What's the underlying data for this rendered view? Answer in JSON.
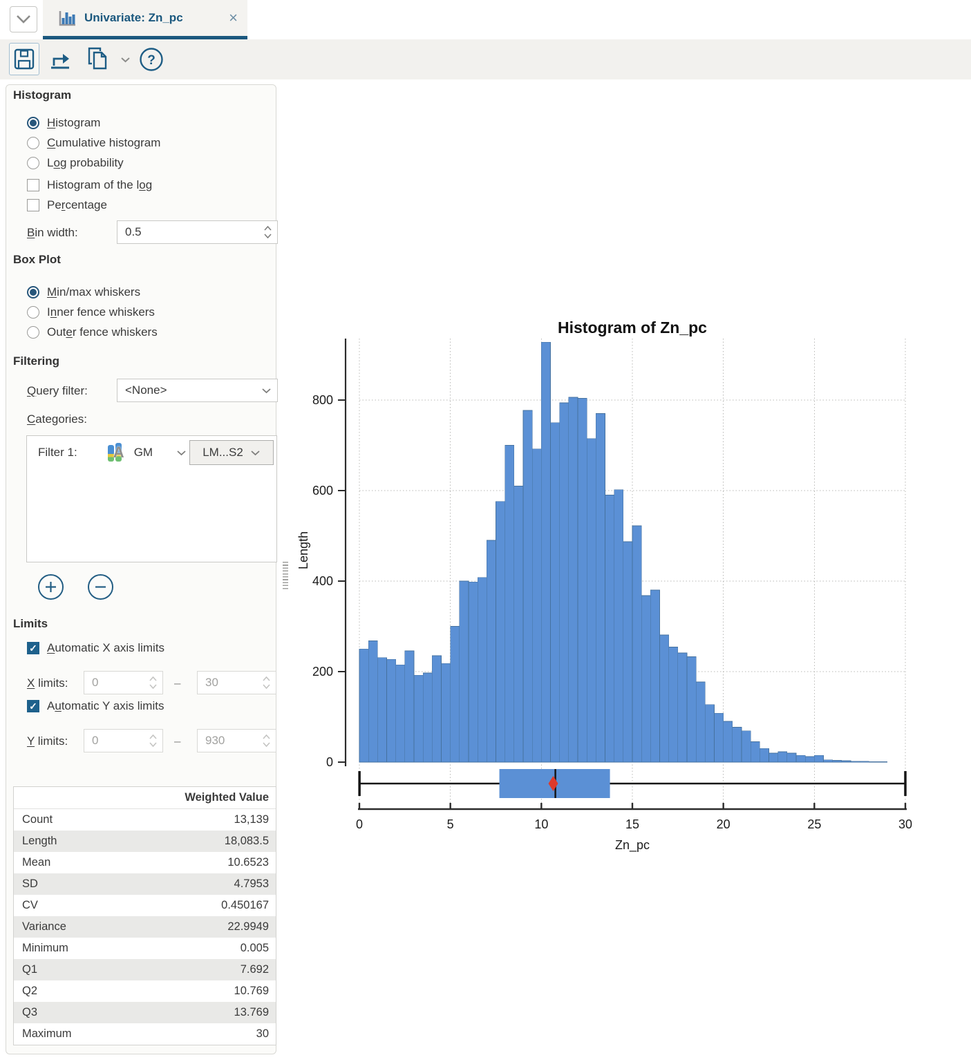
{
  "tab_bar": {
    "window_menu_icon": "chevron-down-icon",
    "tab": {
      "icon": "mini-histogram-icon",
      "title": "Univariate: Zn_pc",
      "close_glyph": "×"
    }
  },
  "toolbar": {
    "buttons": [
      {
        "name": "save",
        "icon": "floppy-disk-icon"
      },
      {
        "name": "export",
        "icon": "export-arrow-icon"
      },
      {
        "name": "copy",
        "icon": "copy-pages-icon"
      },
      {
        "name": "copy-menu",
        "icon": "chevron-down-icon"
      },
      {
        "name": "help",
        "icon": "question-mark-circle-icon",
        "glyph": "?"
      }
    ]
  },
  "sidebar": {
    "histogram_section": {
      "title": "Histogram",
      "radios": [
        {
          "pre": "",
          "key": "H",
          "post": "istogram",
          "selected": true
        },
        {
          "pre": "",
          "key": "C",
          "post": "umulative histogram",
          "selected": false
        },
        {
          "pre": "L",
          "key": "o",
          "post": "g probability",
          "selected": false
        }
      ],
      "checkboxes": [
        {
          "pre": "Histogram of the l",
          "key": "o",
          "post": "g",
          "checked": false
        },
        {
          "pre": "Pe",
          "key": "r",
          "post": "centage",
          "checked": false
        }
      ],
      "bin_width": {
        "label": {
          "pre": "",
          "key": "B",
          "post": "in width:"
        },
        "value": "0.5"
      }
    },
    "box_plot_section": {
      "title": "Box Plot",
      "radios": [
        {
          "pre": "",
          "key": "M",
          "post": "in/max whiskers",
          "selected": true
        },
        {
          "pre": "I",
          "key": "n",
          "post": "ner fence whiskers",
          "selected": false
        },
        {
          "pre": "Out",
          "key": "e",
          "post": "r fence whiskers",
          "selected": false
        }
      ]
    },
    "filtering_section": {
      "title": "Filtering",
      "query_filter": {
        "label": {
          "pre": "",
          "key": "Q",
          "post": "uery filter:"
        },
        "value": "<None>"
      },
      "categories_label": {
        "pre": "",
        "key": "C",
        "post": "ategories:"
      },
      "filter_row": {
        "label": "Filter 1:",
        "column": "GM",
        "column_icon": "category-column-icon",
        "value": "LM...S2"
      },
      "add_icon": "plus-circle-icon",
      "remove_icon": "minus-circle-icon"
    },
    "limits_section": {
      "title": "Limits",
      "auto_x": {
        "label": {
          "pre": "",
          "key": "A",
          "post": "utomatic X axis limits"
        },
        "checked": true
      },
      "x_limits": {
        "label": {
          "pre": "",
          "key": "X",
          "post": " limits:"
        },
        "min": "0",
        "max": "30",
        "separator": "–",
        "disabled": true
      },
      "auto_y": {
        "label": {
          "pre": "A",
          "key": "u",
          "post": "tomatic Y axis limits"
        },
        "checked": true
      },
      "y_limits": {
        "label": {
          "pre": "",
          "key": "Y",
          "post": " limits:"
        },
        "min": "0",
        "max": "930",
        "separator": "–",
        "disabled": true
      }
    },
    "stats_table": {
      "header": "Weighted Value",
      "rows": [
        {
          "label": "Count",
          "value": "13,139"
        },
        {
          "label": "Length",
          "value": "18,083.5"
        },
        {
          "label": "Mean",
          "value": "10.6523"
        },
        {
          "label": "SD",
          "value": "4.7953"
        },
        {
          "label": "CV",
          "value": "0.450167"
        },
        {
          "label": "Variance",
          "value": "22.9949"
        },
        {
          "label": "Minimum",
          "value": "0.005"
        },
        {
          "label": "Q1",
          "value": "7.692"
        },
        {
          "label": "Q2",
          "value": "10.769"
        },
        {
          "label": "Q3",
          "value": "13.769"
        },
        {
          "label": "Maximum",
          "value": "30"
        }
      ]
    }
  },
  "chart_data": {
    "type": "bar",
    "title": "Histogram of Zn_pc",
    "xlabel": "Zn_pc",
    "ylabel": "Length",
    "xlim": [
      0,
      30
    ],
    "ylim": [
      0,
      930
    ],
    "x_ticks": [
      0,
      5,
      10,
      15,
      20,
      25,
      30
    ],
    "y_ticks": [
      0,
      200,
      400,
      600,
      800
    ],
    "grid": "dotted",
    "bin_width": 0.5,
    "bin_start": 0,
    "values": [
      250,
      268,
      231,
      227,
      215,
      246,
      192,
      197,
      235,
      218,
      300,
      400,
      398,
      408,
      490,
      576,
      700,
      610,
      777,
      692,
      928,
      750,
      794,
      806,
      804,
      715,
      770,
      590,
      602,
      487,
      522,
      368,
      380,
      281,
      254,
      241,
      233,
      177,
      127,
      108,
      90,
      77,
      69,
      45,
      30,
      20,
      23,
      20,
      15,
      12,
      15,
      5,
      4,
      3,
      2,
      2,
      1,
      1,
      0,
      0
    ],
    "boxplot": {
      "min": 0.005,
      "q1": 7.692,
      "median": 10.769,
      "q3": 13.769,
      "max": 30,
      "mean": 10.6523,
      "mean_marker": "red-diamond-icon"
    },
    "colors": {
      "bar_fill": "#5b90d5",
      "bar_border": "#46729f",
      "box_fill": "#5b90d5",
      "mean_marker": "#dd3a2b",
      "axis": "#2b2b2b",
      "grid": "#b8b8b6",
      "accent": "#1b587e"
    }
  }
}
